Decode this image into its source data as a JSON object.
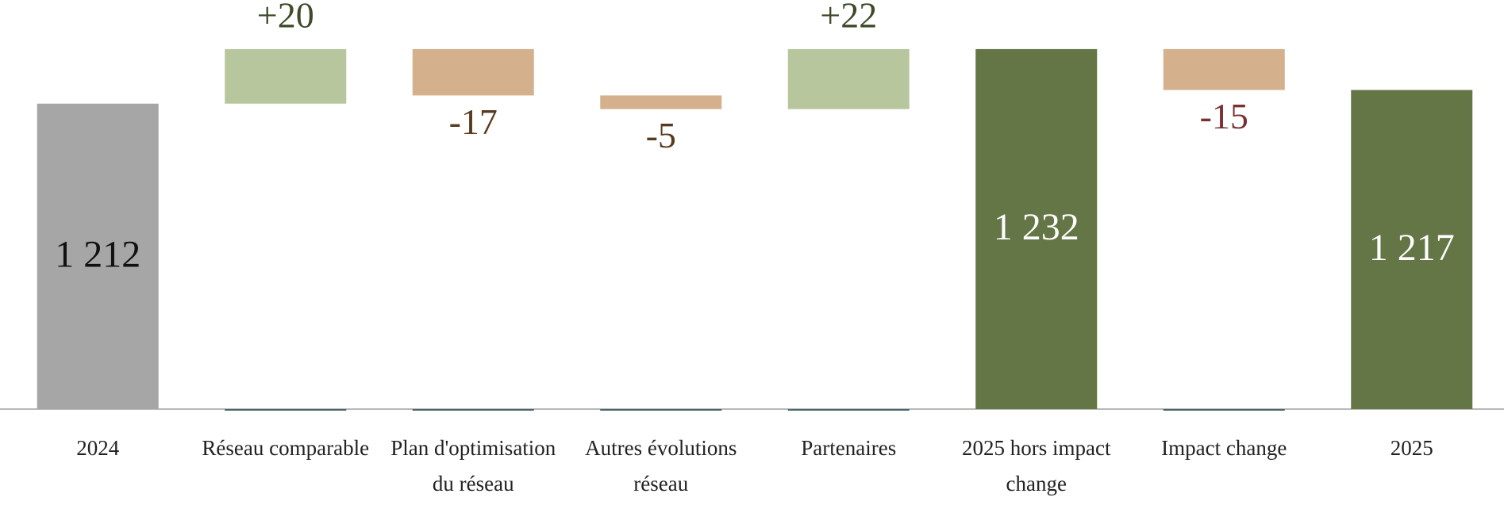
{
  "chart_data": {
    "type": "waterfall",
    "categories": [
      "2024",
      "Réseau comparable",
      "Plan d'optimisation du réseau",
      "Autres évolutions réseau",
      "Partenaires",
      "2025 hors impact change",
      "Impact change",
      "2025"
    ],
    "values": [
      1212,
      20,
      -17,
      -5,
      22,
      1232,
      -15,
      1217
    ],
    "value_labels": [
      "1 212",
      "+20",
      "-17",
      "-5",
      "+22",
      "1 232",
      "-15",
      "1 217"
    ],
    "colors": [
      "#a6a6a6",
      "#b8c69e",
      "#d4b08c",
      "#d4b08c",
      "#b8c69e",
      "#647546",
      "#d4b08c",
      "#647546"
    ],
    "value_label_colors": [
      "#111111",
      "#3f4a2a",
      "#5a3a1e",
      "#5a3a1e",
      "#3f4a2a",
      "#ffffff",
      "#7a3030",
      "#ffffff"
    ],
    "ylim": [
      1100,
      1250
    ]
  }
}
